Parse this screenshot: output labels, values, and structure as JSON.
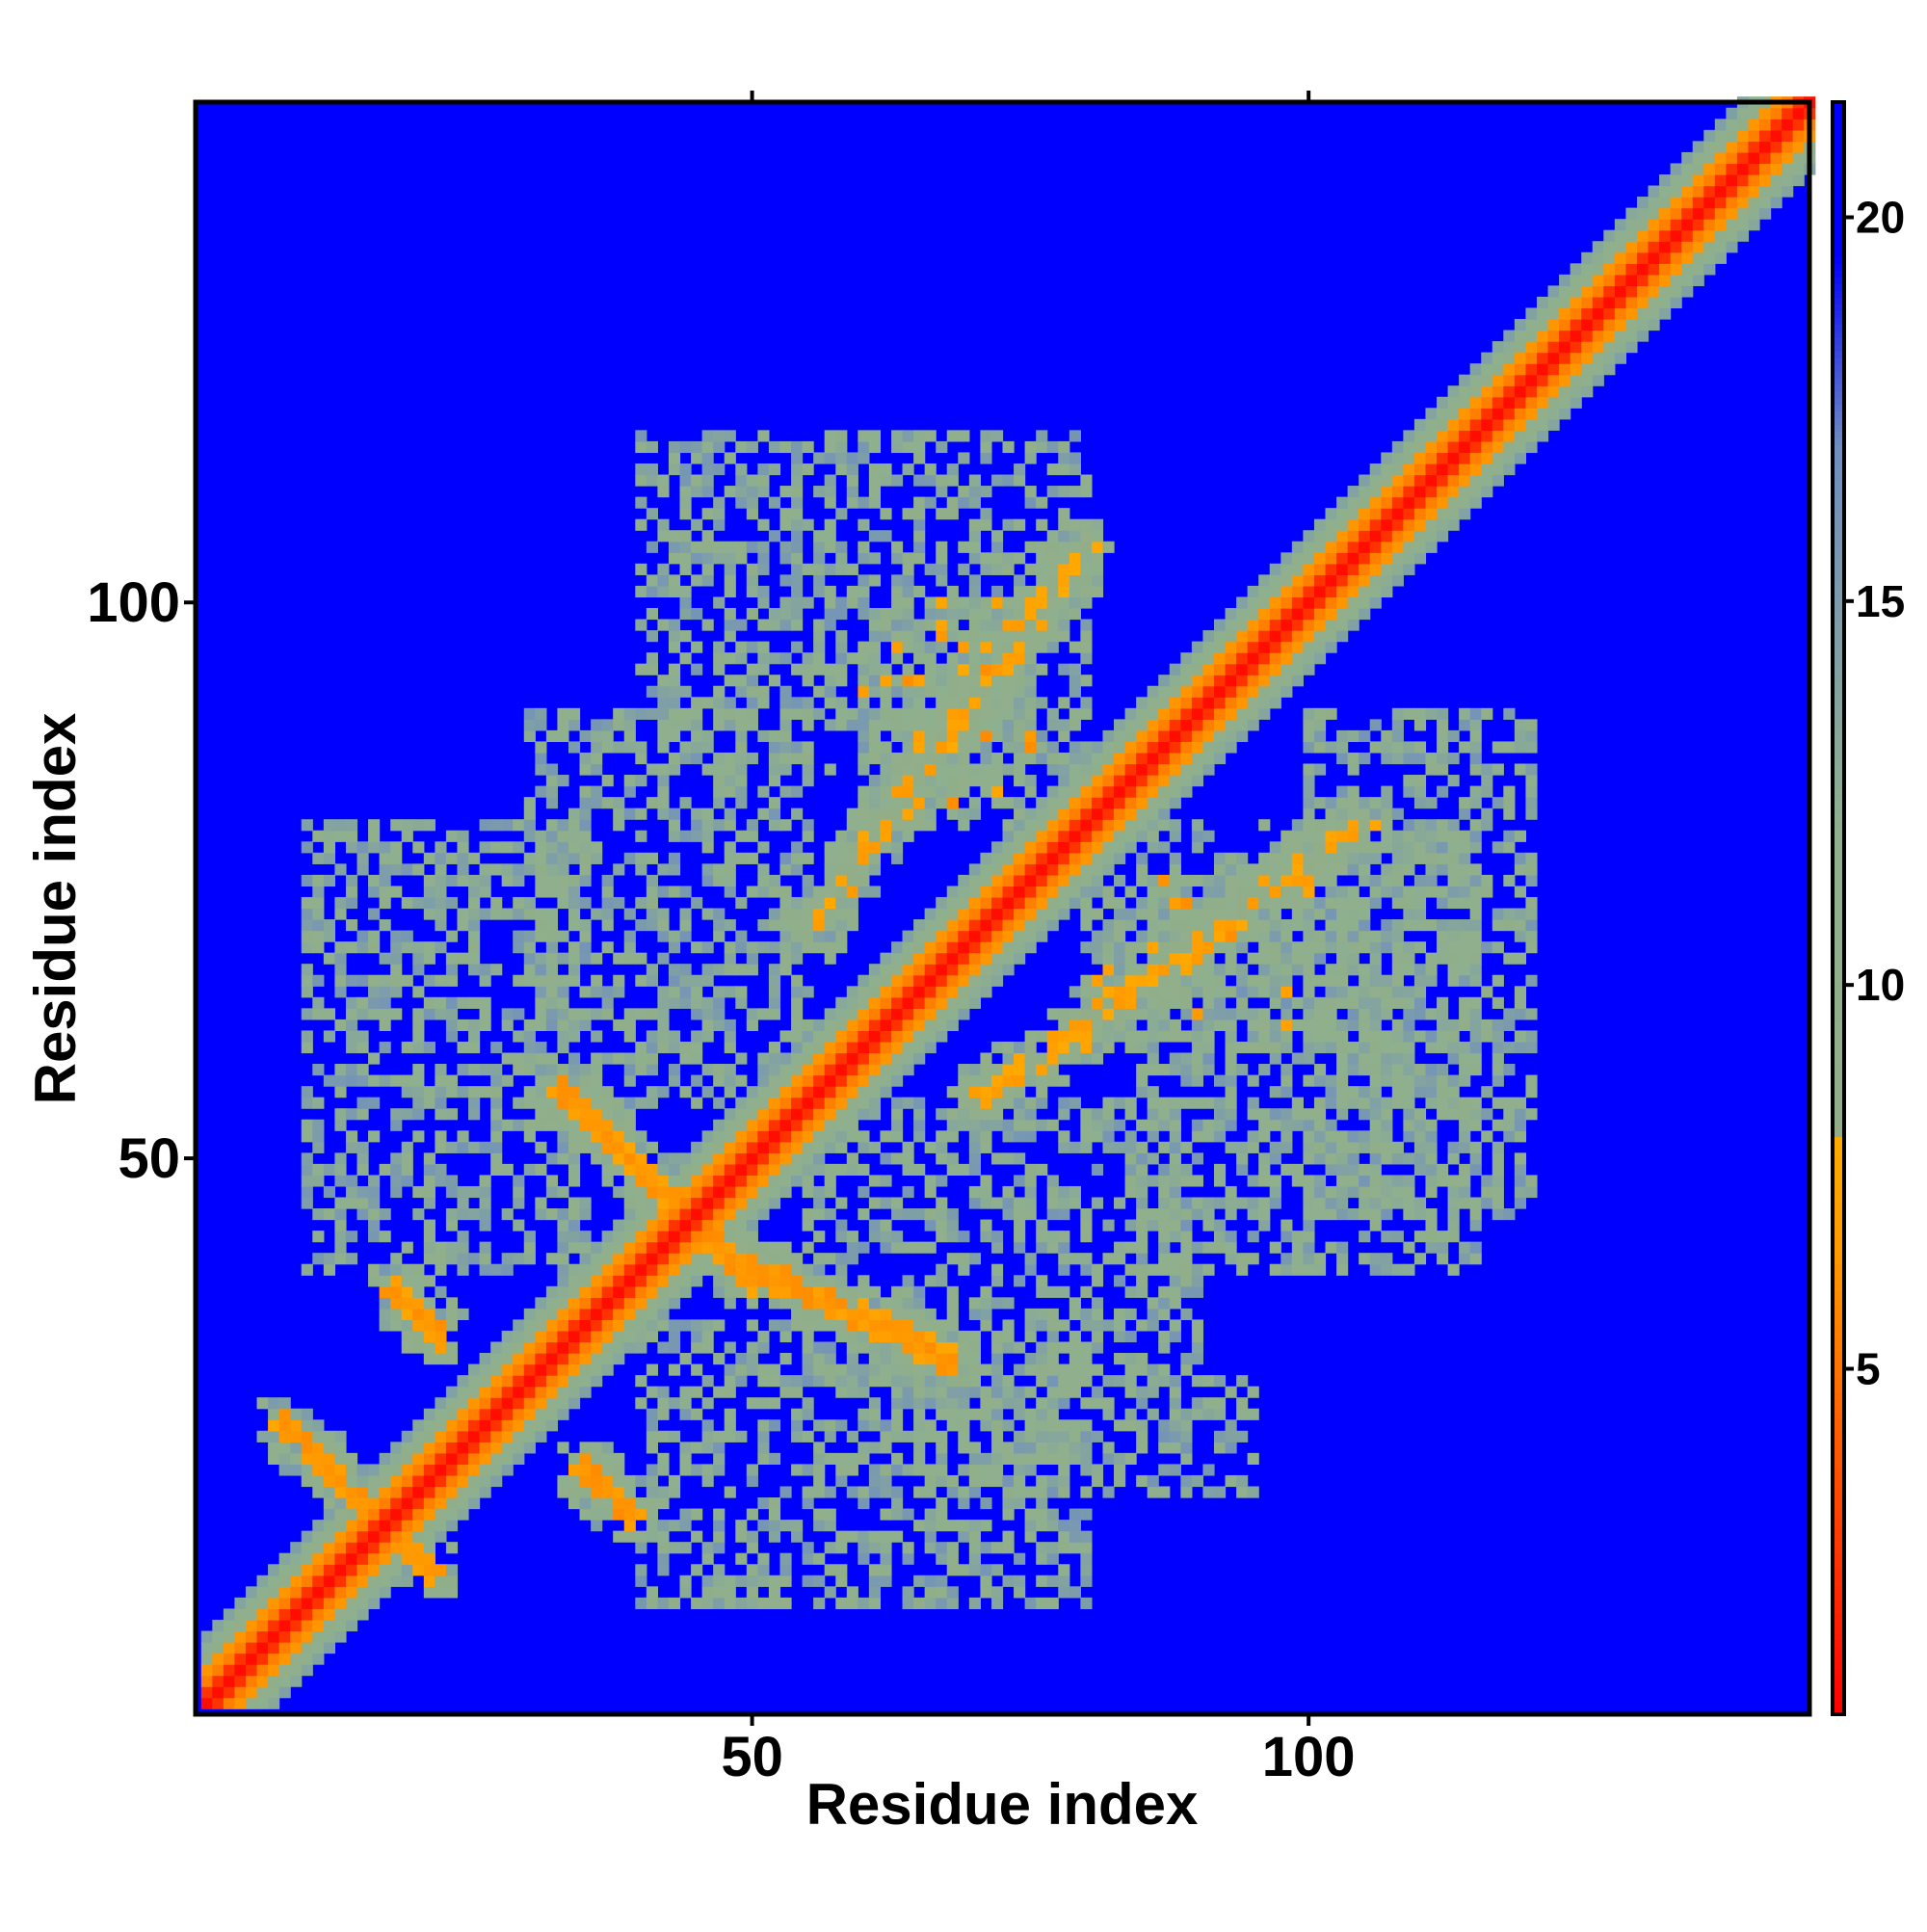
{
  "chart_data": {
    "type": "heatmap",
    "title": "",
    "xlabel": "Residue index",
    "ylabel": "Residue index",
    "n_residues": 145,
    "xlim": [
      1,
      145
    ],
    "ylim": [
      1,
      145
    ],
    "x_ticks": [
      50,
      100
    ],
    "y_ticks": [
      50,
      100
    ],
    "x_tick_labels": [
      "50",
      "100"
    ],
    "y_tick_labels": [
      "50",
      "100"
    ],
    "value_units": "distance",
    "colorbar": {
      "range": [
        0.5,
        21.5
      ],
      "ticks": [
        5,
        10,
        15,
        20
      ],
      "tick_labels": [
        "5",
        "10",
        "15",
        "20"
      ],
      "color_stops": [
        {
          "value": 0.5,
          "color": "#ff0000"
        },
        {
          "value": 6.5,
          "color": "#ff9900"
        },
        {
          "value": 8.0,
          "color": "#ffaa00"
        },
        {
          "value": 8.0,
          "color": "#93ad88"
        },
        {
          "value": 12.0,
          "color": "#8fb08e"
        },
        {
          "value": 17.0,
          "color": "#6f8ec0"
        },
        {
          "value": 19.5,
          "color": "#0000ff"
        },
        {
          "value": 21.5,
          "color": "#0000ff"
        }
      ]
    },
    "background_value": 21,
    "diagonal_band": {
      "core_halfwidth": 1.5,
      "orange_halfwidth": 3.5,
      "green_halfwidth": 6
    },
    "contact_features": [
      {
        "type": "antiparallel",
        "from": [
          8,
          26
        ],
        "to": [
          21,
          13
        ],
        "level": "orange"
      },
      {
        "type": "antiparallel",
        "from": [
          33,
          56
        ],
        "to": [
          50,
          39
        ],
        "level": "orange"
      },
      {
        "type": "antiparallel",
        "from": [
          48,
          41
        ],
        "to": [
          68,
          32
        ],
        "level": "orange"
      },
      {
        "type": "antiparallel",
        "from": [
          18,
          38
        ],
        "to": [
          22,
          34
        ],
        "level": "orange"
      },
      {
        "type": "antiparallel",
        "from": [
          35,
          22
        ],
        "to": [
          39,
          18
        ],
        "level": "orange"
      },
      {
        "type": "parallel",
        "from": [
          55,
          70
        ],
        "to": [
          80,
          105
        ],
        "level": "mixed"
      },
      {
        "type": "parallel",
        "from": [
          70,
          55
        ],
        "to": [
          105,
          80
        ],
        "level": "mixed"
      },
      {
        "type": "cluster",
        "x": [
          60,
          75
        ],
        "y": [
          80,
          100
        ],
        "level": "mixed"
      },
      {
        "type": "cluster",
        "x": [
          80,
          100
        ],
        "y": [
          60,
          75
        ],
        "level": "mixed"
      },
      {
        "type": "cluster",
        "x": [
          30,
          55
        ],
        "y": [
          55,
          90
        ],
        "level": "green"
      },
      {
        "type": "cluster",
        "x": [
          55,
          90
        ],
        "y": [
          30,
          55
        ],
        "level": "green"
      },
      {
        "type": "cluster",
        "x": [
          10,
          35
        ],
        "y": [
          40,
          80
        ],
        "level": "green"
      },
      {
        "type": "cluster",
        "x": [
          40,
          80
        ],
        "y": [
          10,
          35
        ],
        "level": "green"
      },
      {
        "type": "cluster",
        "x": [
          85,
          115
        ],
        "y": [
          40,
          80
        ],
        "level": "green"
      },
      {
        "type": "cluster",
        "x": [
          40,
          80
        ],
        "y": [
          85,
          115
        ],
        "level": "green"
      },
      {
        "type": "cluster",
        "x": [
          100,
          120
        ],
        "y": [
          45,
          90
        ],
        "level": "green"
      },
      {
        "type": "cluster",
        "x": [
          65,
          95
        ],
        "y": [
          20,
          30
        ],
        "level": "green"
      }
    ]
  }
}
